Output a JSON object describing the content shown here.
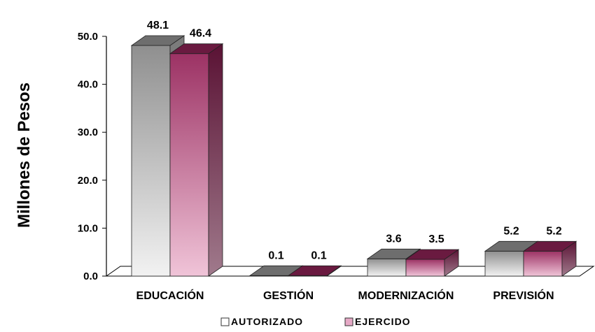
{
  "chart_data": {
    "type": "bar",
    "categories": [
      "EDUCACIÓN",
      "GESTIÓN",
      "MODERNIZACIÓN",
      "PREVISIÓN"
    ],
    "series": [
      {
        "name": "AUTORIZADO",
        "values": [
          48.1,
          0.1,
          3.6,
          5.2
        ],
        "labels": [
          "48.1",
          "0.1",
          "3.6",
          "5.2"
        ],
        "color": "#a0a0a0"
      },
      {
        "name": "EJERCIDO",
        "values": [
          46.4,
          0.1,
          3.5,
          5.2
        ],
        "labels": [
          "46.4",
          "0.1",
          "3.5",
          "5.2"
        ],
        "color": "#a03b6a"
      }
    ],
    "title": "",
    "xlabel": "",
    "ylabel": "Millones de Pesos",
    "ylim": [
      0,
      50
    ],
    "yticks": [
      "0.0",
      "10.0",
      "20.0",
      "30.0",
      "40.0",
      "50.0"
    ],
    "grid": false,
    "legend_position": "bottom",
    "three_d": true
  }
}
